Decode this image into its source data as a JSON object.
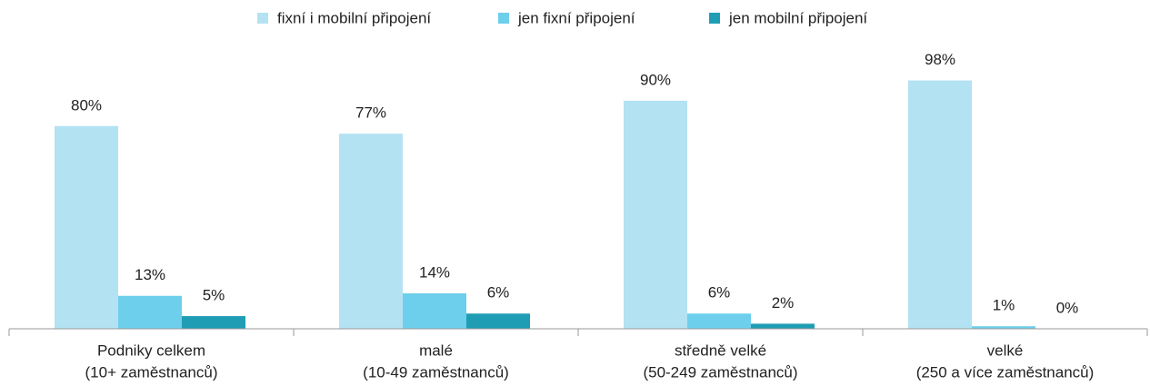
{
  "chart_data": {
    "type": "bar",
    "categories": [
      [
        "Podniky celkem",
        "(10+ zaměstnanců)"
      ],
      [
        "malé",
        "(10-49 zaměstnanců)"
      ],
      [
        "středně velké",
        "(50-249 zaměstnanců)"
      ],
      [
        "velké",
        "(250 a více zaměstnanců)"
      ]
    ],
    "series": [
      {
        "name": "fixní i mobilní připojení",
        "color": "#b3e2f2",
        "values": [
          80,
          77,
          90,
          98
        ],
        "value_labels": [
          "80%",
          "77%",
          "90%",
          "98%"
        ]
      },
      {
        "name": "jen fixní připojení",
        "color": "#6dcfeb",
        "values": [
          13,
          14,
          6,
          1
        ],
        "value_labels": [
          "13%",
          "14%",
          "6%",
          "1%"
        ]
      },
      {
        "name": "jen mobilní připojení",
        "color": "#1f9db5",
        "values": [
          5,
          6,
          2,
          0
        ],
        "value_labels": [
          "5%",
          "6%",
          "2%",
          "0%"
        ]
      }
    ],
    "ylim": [
      0,
      100
    ],
    "legend": "top"
  }
}
